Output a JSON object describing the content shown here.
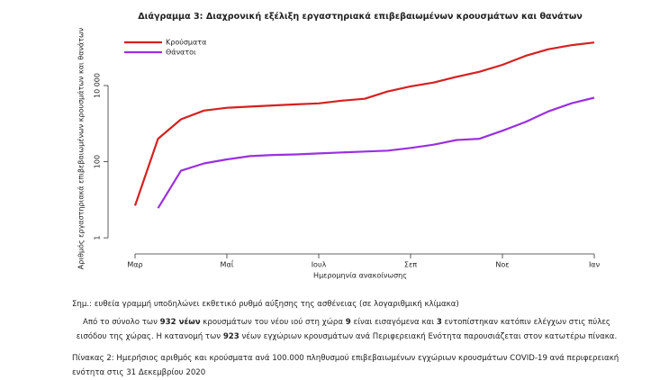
{
  "chart_data": {
    "type": "line",
    "title": "Διάγραμμα 3: Διαχρονική εξέλιξη εργαστηριακά επιβεβαιωμένων κρουσμάτων και θανάτων",
    "y_label": "Αριθμός εργαστηριακά επιβεβαιωμένων κρουσμάτων και θανάτων",
    "x_label": "Ημερομηνία ανακοίνωσης",
    "categories": [
      "Μαρ",
      null,
      null,
      null,
      "Μαΐ",
      null,
      null,
      null,
      "Ιουλ",
      null,
      null,
      null,
      "Σεπ",
      null,
      null,
      null,
      "Νοε",
      null,
      null,
      null,
      "Ιαν"
    ],
    "series": [
      {
        "name": "Κρούσματα",
        "color": "#d62020",
        "values": [
          7,
          400,
          1300,
          2200,
          2600,
          2800,
          3000,
          3200,
          3400,
          4000,
          4500,
          7000,
          9500,
          12000,
          17000,
          23000,
          35000,
          60000,
          90000,
          115000,
          135000
        ]
      },
      {
        "name": "Θάνατοι",
        "color": "#9b30e0",
        "values": [
          null,
          6,
          58,
          90,
          115,
          140,
          150,
          155,
          165,
          175,
          185,
          195,
          230,
          280,
          370,
          400,
          650,
          1100,
          2100,
          3400,
          4800
        ]
      }
    ],
    "log_y": true,
    "ylim": [
      0.6,
      200000
    ],
    "yticks": [
      1,
      100,
      {
        "value": 10000,
        "label": "10 000"
      }
    ],
    "legend": "top-left"
  },
  "note": "Σημ.: ευθεία γραμμή υποδηλώνει εκθετικό ρυθμό αύξησης της ασθένειας (σε λογαριθμική κλίμακα)",
  "paragraph": [
    "Από το σύνολο των ",
    "932 νέων",
    " κρουσμάτων του νέου ιού στη χώρα ",
    "9",
    " είναι εισαγόμενα και ",
    "3",
    " εντοπίστηκαν κατόπιν ελέγχων στις πύλες εισόδου της χώρας. Η κατανομή των ",
    "923",
    " νέων εγχώριων κρουσμάτων ανά Περιφερειακή Ενότητα παρουσιάζεται στον κατωτέρω πίνακα."
  ],
  "table_caption": "Πίνακας 2: Ημερήσιος αριθμός και κρούσματα ανά 100.000 πληθυσμού επιβεβαιωμένων εγχώριων κρουσμάτων COVID-19 ανά περιφερειακή ενότητα στις 31 Δεκεμβρίου 2020"
}
